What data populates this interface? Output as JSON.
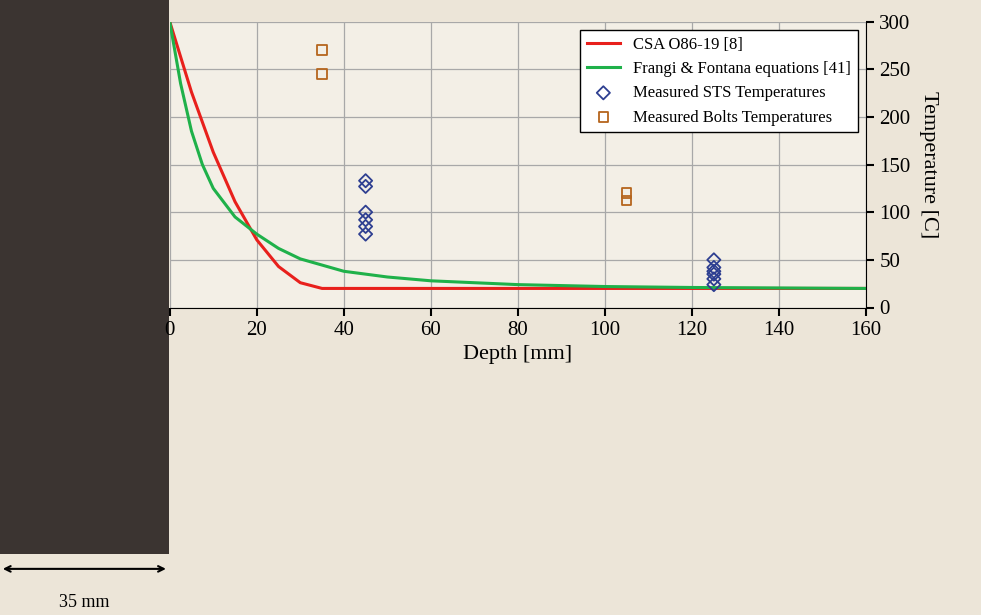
{
  "chart_data": {
    "type": "line",
    "x_label": "Depth [mm]",
    "y_label": "Temperature [C]",
    "annotation": "35 mm",
    "xlim": [
      0,
      160
    ],
    "xticks": [
      0,
      20,
      40,
      60,
      80,
      100,
      120,
      140,
      160
    ],
    "ylim": [
      0,
      300
    ],
    "yticks": [
      0,
      50,
      100,
      150,
      200,
      250,
      300
    ],
    "grid": true,
    "legend": "upper right",
    "series": [
      {
        "name": "CSA O86-19 [8]",
        "type": "line",
        "color": "#e8201c",
        "x": [
          0,
          5,
          10,
          15,
          20,
          25,
          30,
          35,
          160
        ],
        "values": [
          300,
          226,
          163,
          111,
          71,
          43,
          26,
          20,
          20
        ]
      },
      {
        "name": "Frangi & Fontana equations [41]",
        "type": "line",
        "color": "#1fb14a",
        "x": [
          0,
          2.5,
          5,
          7.5,
          10,
          15,
          20,
          25,
          30,
          40,
          50,
          60,
          80,
          100,
          120,
          160
        ],
        "values": [
          300,
          235,
          185,
          150,
          125,
          95,
          77,
          62,
          51,
          38,
          32,
          28,
          24,
          22,
          21,
          20
        ]
      },
      {
        "name": "Measured STS Temperatures",
        "type": "scatter",
        "marker": "diamond",
        "color": "#2e3f91",
        "x": [
          45,
          45,
          45,
          45,
          45,
          45,
          125,
          125,
          125,
          125,
          125,
          125
        ],
        "values": [
          133,
          127,
          100,
          92,
          85,
          77,
          50,
          42,
          38,
          35,
          30,
          24
        ]
      },
      {
        "name": "Measured Bolts Temperatures",
        "type": "scatter",
        "marker": "square",
        "color": "#b5651d",
        "x": [
          35,
          35,
          105,
          105
        ],
        "values": [
          270,
          245,
          120,
          112
        ]
      }
    ]
  }
}
